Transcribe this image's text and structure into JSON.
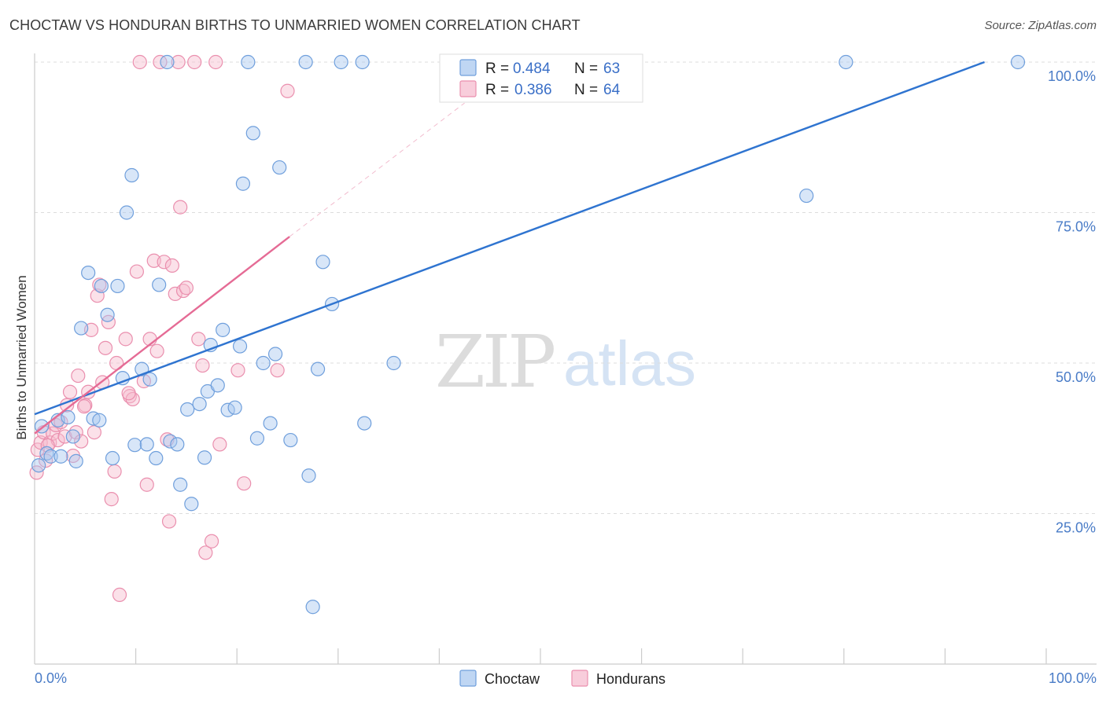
{
  "title": "CHOCTAW VS HONDURAN BIRTHS TO UNMARRIED WOMEN CORRELATION CHART",
  "source": "Source: ZipAtlas.com",
  "watermark": {
    "zip": "ZIP",
    "atlas": "atlas"
  },
  "colors": {
    "choctaw_fill": "#a9c8ef",
    "choctaw_stroke": "#6f9fdc",
    "choctaw_line": "#2f74d0",
    "honduran_fill": "#f6bccf",
    "honduran_stroke": "#ea8fae",
    "honduran_line": "#e56b95",
    "grid": "#dddddd",
    "axis_text": "#4a7cc7"
  },
  "legend": {
    "rows": [
      {
        "series": "Choctaw",
        "r_label": "R =",
        "r_value": "0.484",
        "n_label": "N =",
        "n_value": "63"
      },
      {
        "series": "Hondurans",
        "r_label": "R =",
        "r_value": "0.386",
        "n_label": "N =",
        "n_value": "64"
      }
    ]
  },
  "chart_data": {
    "type": "scatter",
    "title": "CHOCTAW VS HONDURAN BIRTHS TO UNMARRIED WOMEN CORRELATION CHART",
    "xlabel": "",
    "ylabel": "Births to Unmarried Women",
    "xlim": [
      0,
      100
    ],
    "ylim": [
      0,
      102
    ],
    "x_tick_labels": [
      "0.0%",
      "100.0%"
    ],
    "y_ticks": [
      25,
      50,
      75,
      100
    ],
    "y_tick_labels": [
      "25.0%",
      "50.0%",
      "75.0%",
      "100.0%"
    ],
    "series": [
      {
        "name": "Choctaw",
        "R": 0.484,
        "N": 63,
        "trend": {
          "x": [
            0,
            93.9
          ],
          "y": [
            41.5,
            100
          ]
        },
        "points": [
          [
            0.7,
            39.5
          ],
          [
            1.2,
            35
          ],
          [
            1.6,
            34.5
          ],
          [
            2.3,
            40.5
          ],
          [
            2.6,
            34.5
          ],
          [
            3.3,
            41
          ],
          [
            3.8,
            37.8
          ],
          [
            4.1,
            33.7
          ],
          [
            4.6,
            55.8
          ],
          [
            5.3,
            65
          ],
          [
            5.8,
            40.8
          ],
          [
            6.4,
            40.5
          ],
          [
            6.6,
            62.8
          ],
          [
            7.2,
            58
          ],
          [
            7.7,
            34.2
          ],
          [
            8.2,
            62.8
          ],
          [
            8.7,
            47.5
          ],
          [
            9.1,
            75
          ],
          [
            9.6,
            81.2
          ],
          [
            9.9,
            36.4
          ],
          [
            10.6,
            49
          ],
          [
            11.1,
            36.5
          ],
          [
            11.4,
            47.3
          ],
          [
            12.0,
            34.2
          ],
          [
            12.3,
            63
          ],
          [
            13.1,
            100
          ],
          [
            13.4,
            37
          ],
          [
            14.1,
            36.5
          ],
          [
            14.4,
            29.8
          ],
          [
            15.1,
            42.3
          ],
          [
            15.5,
            26.6
          ],
          [
            16.3,
            43.2
          ],
          [
            16.8,
            34.3
          ],
          [
            17.1,
            45.3
          ],
          [
            17.4,
            53
          ],
          [
            18.1,
            46.3
          ],
          [
            18.6,
            55.5
          ],
          [
            19.1,
            42.2
          ],
          [
            19.8,
            42.6
          ],
          [
            20.3,
            52.8
          ],
          [
            20.6,
            79.8
          ],
          [
            21.1,
            100
          ],
          [
            21.6,
            88.2
          ],
          [
            22.0,
            37.5
          ],
          [
            22.6,
            50
          ],
          [
            23.3,
            40
          ],
          [
            23.8,
            51.5
          ],
          [
            24.2,
            82.5
          ],
          [
            25.3,
            37.2
          ],
          [
            26.8,
            100
          ],
          [
            27.1,
            31.3
          ],
          [
            27.5,
            9.5
          ],
          [
            28.0,
            49
          ],
          [
            28.5,
            66.8
          ],
          [
            29.4,
            59.8
          ],
          [
            30.3,
            100
          ],
          [
            32.4,
            100
          ],
          [
            32.6,
            40
          ],
          [
            35.5,
            50
          ],
          [
            76.3,
            77.8
          ],
          [
            80.2,
            100
          ],
          [
            97.2,
            100
          ],
          [
            0.4,
            33
          ]
        ]
      },
      {
        "name": "Hondurans",
        "R": 0.386,
        "N": 64,
        "trend": {
          "x": [
            0,
            25.2
          ],
          "y": [
            38.3,
            71
          ]
        },
        "trend_ext": {
          "x": [
            25.2,
            42.5
          ],
          "y": [
            71,
            93.2
          ]
        },
        "points": [
          [
            0.3,
            35.6
          ],
          [
            0.6,
            36.8
          ],
          [
            0.9,
            38.5
          ],
          [
            1.1,
            33.8
          ],
          [
            1.5,
            36.8
          ],
          [
            1.8,
            38.3
          ],
          [
            2.1,
            39.7
          ],
          [
            2.3,
            37.2
          ],
          [
            2.6,
            40.2
          ],
          [
            3.0,
            37.8
          ],
          [
            3.2,
            43
          ],
          [
            3.5,
            45.2
          ],
          [
            3.8,
            34.6
          ],
          [
            4.1,
            38.5
          ],
          [
            4.3,
            47.9
          ],
          [
            4.6,
            37
          ],
          [
            5.0,
            43
          ],
          [
            5.3,
            45.2
          ],
          [
            5.6,
            55.5
          ],
          [
            5.9,
            38.5
          ],
          [
            6.2,
            61.2
          ],
          [
            6.4,
            63
          ],
          [
            6.7,
            46.8
          ],
          [
            7.0,
            52.5
          ],
          [
            7.3,
            56.8
          ],
          [
            7.6,
            27.4
          ],
          [
            7.9,
            32
          ],
          [
            8.1,
            50
          ],
          [
            8.4,
            11.5
          ],
          [
            9.0,
            54
          ],
          [
            9.4,
            44.5
          ],
          [
            9.7,
            44
          ],
          [
            10.1,
            65.2
          ],
          [
            10.4,
            100
          ],
          [
            10.8,
            47
          ],
          [
            11.1,
            29.8
          ],
          [
            11.4,
            54
          ],
          [
            11.8,
            67
          ],
          [
            12.1,
            52
          ],
          [
            12.4,
            100
          ],
          [
            12.8,
            66.8
          ],
          [
            13.1,
            37.3
          ],
          [
            13.3,
            23.7
          ],
          [
            13.6,
            66.2
          ],
          [
            13.9,
            61.5
          ],
          [
            14.2,
            100
          ],
          [
            14.4,
            75.9
          ],
          [
            14.7,
            62
          ],
          [
            15.0,
            62.5
          ],
          [
            15.8,
            100
          ],
          [
            16.2,
            54
          ],
          [
            16.6,
            49.6
          ],
          [
            16.9,
            18.5
          ],
          [
            17.5,
            20.4
          ],
          [
            17.9,
            100
          ],
          [
            18.3,
            36.5
          ],
          [
            20.1,
            48.8
          ],
          [
            20.7,
            30
          ],
          [
            24.0,
            48.8
          ],
          [
            25.0,
            95.2
          ],
          [
            0.2,
            31.8
          ],
          [
            1.3,
            36.3
          ],
          [
            4.9,
            42.8
          ],
          [
            9.3,
            45
          ]
        ]
      }
    ]
  },
  "bottom_legend": [
    "Choctaw",
    "Hondurans"
  ]
}
